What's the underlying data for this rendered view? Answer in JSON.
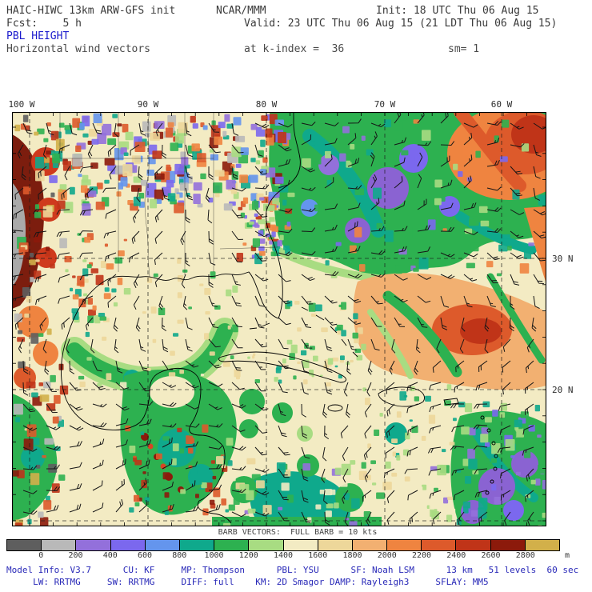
{
  "header": {
    "model": "HAIC-HIWC 13km ARW-GFS init",
    "org": "NCAR/MMM",
    "init": "Init: 18 UTC Thu 06 Aug 15",
    "fcst": "Fcst:    5 h",
    "valid": "Valid: 23 UTC Thu 06 Aug 15 (21 LDT Thu 06 Aug 15)",
    "field": "PBL HEIGHT",
    "subtitle": "Horizontal wind vectors",
    "k_index": "at k-index =  36",
    "sm": "sm= 1"
  },
  "map": {
    "x_ticks": [
      "100 W",
      "90 W",
      "80 W",
      "70 W",
      "60 W"
    ],
    "y_ticks": [
      "30 N",
      "20 N"
    ]
  },
  "legend": {
    "barb_caption": "BARB VECTORS:  FULL BARB = 10 kts"
  },
  "colorbar": {
    "unit": "m",
    "ticks": [
      "0",
      "200",
      "400",
      "600",
      "800",
      "1000",
      "1200",
      "1400",
      "1600",
      "1800",
      "2000",
      "2200",
      "2400",
      "2600",
      "2800"
    ],
    "colors": [
      "#5e5e5e",
      "#b9b9b9",
      "#9370db",
      "#7b68ee",
      "#6495ed",
      "#0fa98c",
      "#2db150",
      "#a8dc82",
      "#f3ebc3",
      "#edd79a",
      "#f2b071",
      "#ef8440",
      "#dd5a2b",
      "#c03418",
      "#8c1a0b",
      "#d2b04a"
    ]
  },
  "footer": {
    "line1": "Model Info: V3.7      CU: KF     MP: Thompson      PBL: YSU      SF: Noah LSM      13 km   51 levels  60 sec",
    "line2": "     LW: RRTMG     SW: RRTMG     DIFF: full    KM: 2D Smagor DAMP: Rayleigh3     SFLAY: MM5"
  },
  "chart_data": {
    "type": "heatmap",
    "title": "PBL HEIGHT",
    "subtitle": "Horizontal wind vectors",
    "model": "HAIC-HIWC 13km ARW-GFS init",
    "org": "NCAR/MMM",
    "init_time": "18 UTC Thu 06 Aug 15",
    "forecast_hour": "5 h",
    "valid_time": "23 UTC Thu 06 Aug 15 (21 LDT Thu 06 Aug 15)",
    "k_index": 36,
    "sm": 1,
    "unit": "m",
    "levels": [
      0,
      200,
      400,
      600,
      800,
      1000,
      1200,
      1400,
      1600,
      1800,
      2000,
      2200,
      2400,
      2600,
      2800
    ],
    "palette": [
      "#5e5e5e",
      "#b9b9b9",
      "#9370db",
      "#7b68ee",
      "#6495ed",
      "#0fa98c",
      "#2db150",
      "#a8dc82",
      "#f3ebc3",
      "#edd79a",
      "#f2b071",
      "#ef8440",
      "#dd5a2b",
      "#c03418",
      "#8c1a0b",
      "#d2b04a"
    ],
    "x_axis": {
      "ticks": [
        "100 W",
        "90 W",
        "80 W",
        "70 W",
        "60 W"
      ]
    },
    "y_axis": {
      "ticks": [
        "30 N",
        "20 N"
      ]
    },
    "overlay": "wind barbs",
    "wind_barb_full": "10 kts"
  }
}
